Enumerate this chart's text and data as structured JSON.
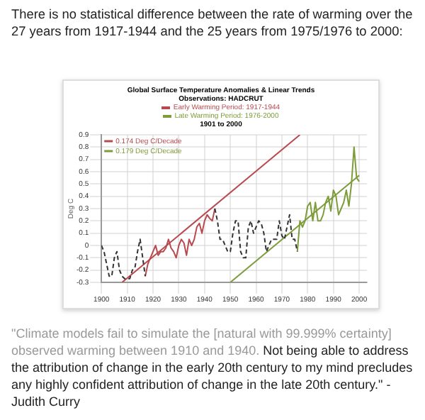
{
  "chart_data": {
    "type": "line",
    "title": "Global Surface Temperature Anomalies & Linear Trends",
    "subtitle": "Observations: HADCRUT",
    "ylabel": "Deg C",
    "annotations": [
      "There is no statistical difference between the rate of warming over the 27 years from 1917-1944 and the 25 years from 1975/1976 to 2000:",
      "1901 to 2000",
      "\"Climate models fail to simulate the [natural with 99.999% certainty] observed warming between 1910 and 1940.",
      "Not being able to address the attribution of change in the early 20th century to my mind precludes any highly confident attribution of change in the late 20th century.\" - Judith Curry"
    ],
    "xlim": [
      1900,
      2003
    ],
    "xticks": [
      1900,
      1910,
      1920,
      1930,
      1940,
      1950,
      1960,
      1970,
      1980,
      1990,
      2000
    ],
    "ylim": [
      -0.3,
      0.9
    ],
    "yticks": [
      -0.3,
      -0.2,
      -0.1,
      0,
      0.1,
      0.2,
      0.3,
      0.4,
      0.5,
      0.6,
      0.7,
      0.8,
      0.9
    ],
    "grid": true,
    "marker": "none",
    "legend": "top",
    "series": [
      {
        "color": "#333333",
        "line_style": "dashed",
        "x": [
          1900,
          1901,
          1902,
          1903,
          1904,
          1905,
          1906,
          1907,
          1908,
          1909,
          1910,
          1911,
          1912,
          1913,
          1914,
          1915,
          1916,
          1917,
          null,
          1944,
          1945,
          1946,
          1947,
          1948,
          1949,
          1950,
          1951,
          1952,
          1953,
          1954,
          1955,
          1956,
          1957,
          1958,
          1959,
          1960,
          1961,
          1962,
          1963,
          1964,
          1965,
          1966,
          1967,
          1968,
          1969,
          1970,
          1971,
          1972,
          1973,
          1974,
          1975,
          1976
        ],
        "values": [
          0,
          -0.05,
          -0.15,
          -0.25,
          -0.25,
          -0.1,
          -0.05,
          -0.2,
          -0.25,
          -0.27,
          -0.27,
          -0.27,
          -0.2,
          -0.18,
          -0.05,
          0.05,
          -0.1,
          -0.25,
          null,
          0.3,
          0.2,
          0.05,
          0.05,
          0,
          -0.05,
          -0.05,
          0.1,
          0.2,
          0.2,
          -0.05,
          -0.1,
          -0.1,
          0.15,
          0.2,
          0.1,
          0.15,
          0.2,
          0.18,
          0.1,
          -0.05,
          0,
          0.05,
          0.05,
          0.05,
          0.2,
          0.08,
          0.05,
          0.15,
          0.25,
          0.05,
          0.05,
          -0.05
        ]
      },
      {
        "name": "Early Warming Period: 1917-1944",
        "color": "#b84a4f",
        "x": [
          1917,
          1918,
          1919,
          1920,
          1921,
          1922,
          1923,
          1924,
          1925,
          1926,
          1927,
          1928,
          1929,
          1930,
          1931,
          1932,
          1933,
          1934,
          1935,
          1936,
          1937,
          1938,
          1939,
          1940,
          1941,
          1942,
          1943,
          1944
        ],
        "values": [
          -0.25,
          -0.15,
          -0.1,
          -0.05,
          0,
          -0.08,
          -0.05,
          -0.05,
          -0.02,
          0.05,
          -0.02,
          -0.05,
          -0.1,
          0,
          0.05,
          0.02,
          -0.08,
          0.05,
          0,
          0.05,
          0.15,
          0.18,
          0.1,
          0.2,
          0.25,
          0.22,
          0.2,
          0.3
        ]
      },
      {
        "name": "Late Warming Period: 1976-2000",
        "color": "#7d9c3a",
        "x": [
          1976,
          1977,
          1978,
          1979,
          1980,
          1981,
          1982,
          1983,
          1984,
          1985,
          1986,
          1987,
          1988,
          1989,
          1990,
          1991,
          1992,
          1993,
          1994,
          1995,
          1996,
          1997,
          1998,
          1999,
          2000
        ],
        "values": [
          -0.05,
          0.2,
          0.15,
          0.2,
          0.32,
          0.35,
          0.2,
          0.35,
          0.2,
          0.2,
          0.25,
          0.35,
          0.4,
          0.28,
          0.45,
          0.4,
          0.25,
          0.3,
          0.35,
          0.45,
          0.32,
          0.5,
          0.8,
          0.55,
          0.52
        ]
      },
      {
        "name": "0.174 Deg C/Decade",
        "type": "line",
        "color": "#b84a4f",
        "x": [
          1908,
          1977
        ],
        "values": [
          -0.3,
          0.9
        ]
      },
      {
        "name": "0.179 Deg C/Decade",
        "type": "line",
        "color": "#7d9c3a",
        "x": [
          1950,
          2000
        ],
        "values": [
          -0.3,
          0.57
        ]
      }
    ]
  }
}
